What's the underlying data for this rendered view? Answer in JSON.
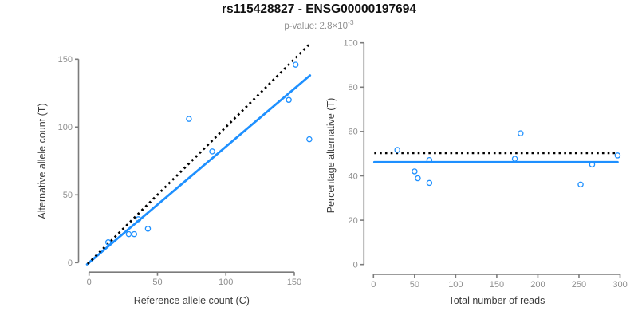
{
  "header": {
    "title": "rs115428827 - ENSG00000197694",
    "pvalue_text": "p-value: 2.8×10",
    "pvalue_exponent": "-3"
  },
  "colors": {
    "accent_blue": "#1E90FF",
    "dotted_black": "#000000",
    "axis_gray": "#7c7c7c",
    "tick_label_gray": "#8e8e8e",
    "axis_title_gray": "#3d3d3d",
    "subtitle_gray": "#8f8f8f"
  },
  "chart_data": [
    {
      "id": "allele-counts",
      "type": "scatter",
      "title": "",
      "xlabel": "Reference allele count (C)",
      "ylabel": "Alternative allele count (T)",
      "xlim": [
        -8,
        168
      ],
      "ylim": [
        -8,
        163
      ],
      "xticks": [
        0,
        50,
        100,
        150
      ],
      "yticks": [
        0,
        50,
        100,
        150
      ],
      "grid": false,
      "legend": "none",
      "points": [
        [
          14,
          15
        ],
        [
          29,
          21
        ],
        [
          33,
          21
        ],
        [
          36,
          32
        ],
        [
          43,
          25
        ],
        [
          73,
          106
        ],
        [
          90,
          82
        ],
        [
          146,
          120
        ],
        [
          151,
          146
        ],
        [
          161,
          91
        ]
      ],
      "lines": [
        {
          "name": "fitted-line",
          "style": "solid",
          "color": "#1E90FF",
          "slope": 0.855,
          "intercept": 0,
          "x_from": -1.5,
          "x_to": 161.5
        },
        {
          "name": "identity-line",
          "style": "dotted",
          "color": "#000000",
          "slope": 1,
          "intercept": 0,
          "x_from": -1.0,
          "x_to": 162.0
        }
      ]
    },
    {
      "id": "percentage-vs-reads",
      "type": "scatter",
      "title": "",
      "xlabel": "Total number of reads",
      "ylabel": "Percentage alternative (T)",
      "xlim": [
        -12,
        310
      ],
      "ylim": [
        0,
        100
      ],
      "xticks": [
        0,
        50,
        100,
        150,
        200,
        250,
        300
      ],
      "yticks": [
        0,
        20,
        40,
        60,
        80,
        100
      ],
      "grid": false,
      "legend": "none",
      "points": [
        [
          29,
          51.7
        ],
        [
          50,
          42.0
        ],
        [
          54,
          38.9
        ],
        [
          68,
          47.1
        ],
        [
          68,
          36.8
        ],
        [
          172,
          47.7
        ],
        [
          179,
          59.2
        ],
        [
          252,
          36.1
        ],
        [
          266,
          45.1
        ],
        [
          297,
          49.2
        ]
      ],
      "lines": [
        {
          "name": "fitted-percentage-line",
          "style": "solid",
          "color": "#1E90FF",
          "y": 46.2,
          "x_from": 1,
          "x_to": 297
        },
        {
          "name": "null-percentage-line",
          "style": "dotted",
          "color": "#000000",
          "y": 50.3,
          "x_from": 1,
          "x_to": 297
        }
      ]
    }
  ]
}
